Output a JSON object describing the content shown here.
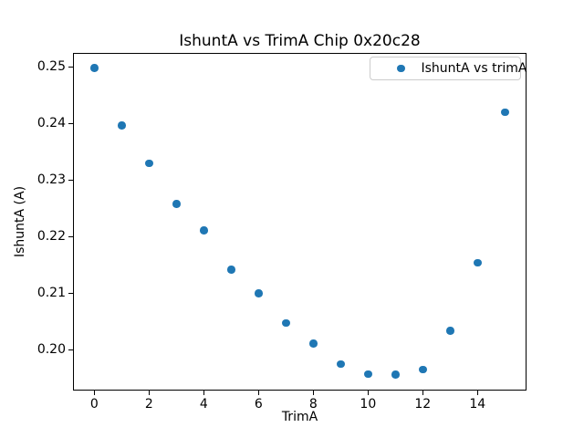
{
  "figure": {
    "background": "#ffffff"
  },
  "chart_data": {
    "type": "scatter",
    "title": "IshuntA vs TrimA Chip 0x20c28",
    "xlabel": "TrimA",
    "ylabel": "IshuntA (A)",
    "legend": {
      "label": "IshuntA vs trimA",
      "position": "upper right",
      "marker": "circle"
    },
    "marker": {
      "shape": "circle",
      "color": "#1f77b4"
    },
    "x": [
      0,
      1,
      2,
      3,
      4,
      5,
      6,
      7,
      8,
      9,
      10,
      11,
      12,
      13,
      14,
      15
    ],
    "y": [
      0.2498,
      0.2397,
      0.233,
      0.2258,
      0.2211,
      0.2142,
      0.21,
      0.2047,
      0.2011,
      0.1975,
      0.1957,
      0.1956,
      0.1965,
      0.2034,
      0.2154,
      0.242
    ],
    "xlim": [
      -0.78,
      15.79
    ],
    "ylim": [
      0.1928,
      0.2525
    ],
    "xticks": [
      0,
      2,
      4,
      6,
      8,
      10,
      12,
      14
    ],
    "xtick_labels": [
      "0",
      "2",
      "4",
      "6",
      "8",
      "10",
      "12",
      "14"
    ],
    "yticks": [
      0.2,
      0.21,
      0.22,
      0.23,
      0.24,
      0.25
    ],
    "ytick_labels": [
      "0.20",
      "0.21",
      "0.22",
      "0.23",
      "0.24",
      "0.25"
    ],
    "grid": false,
    "axis_color": "#000000",
    "text_color": "#000000"
  }
}
